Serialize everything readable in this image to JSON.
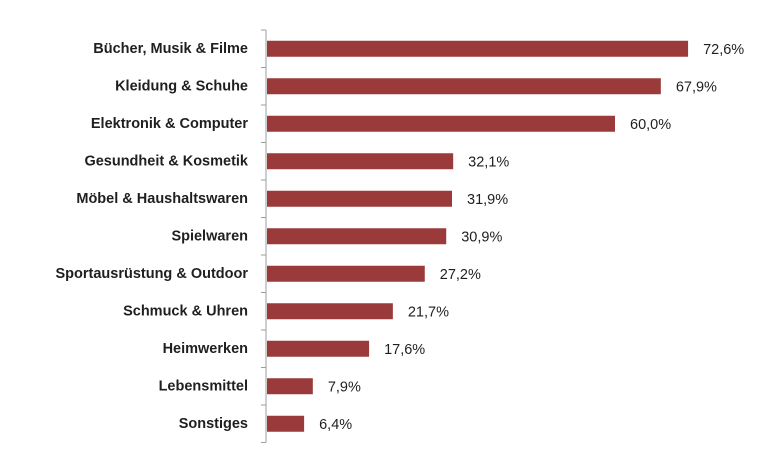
{
  "chart_data": {
    "type": "bar",
    "orientation": "horizontal",
    "categories": [
      "Bücher, Musik & Filme",
      "Kleidung & Schuhe",
      "Elektronik & Computer",
      "Gesundheit & Kosmetik",
      "Möbel & Haushaltswaren",
      "Spielwaren",
      "Sportausrüstung & Outdoor",
      "Schmuck & Uhren",
      "Heimwerken",
      "Lebensmittel",
      "Sonstiges"
    ],
    "values": [
      72.6,
      67.9,
      60.0,
      32.1,
      31.9,
      30.9,
      27.2,
      21.7,
      17.6,
      7.9,
      6.4
    ],
    "value_labels": [
      "72,6%",
      "67,9%",
      "60,0%",
      "32,1%",
      "31,9%",
      "30,9%",
      "27,2%",
      "21,7%",
      "17,6%",
      "7,9%",
      "6,4%"
    ],
    "xlim": [
      0,
      100
    ],
    "title": "",
    "xlabel": "",
    "ylabel": "",
    "grid": false,
    "legend": "none",
    "bar_color": "#9b3a3a",
    "axis_color": "#9e9e9e"
  }
}
